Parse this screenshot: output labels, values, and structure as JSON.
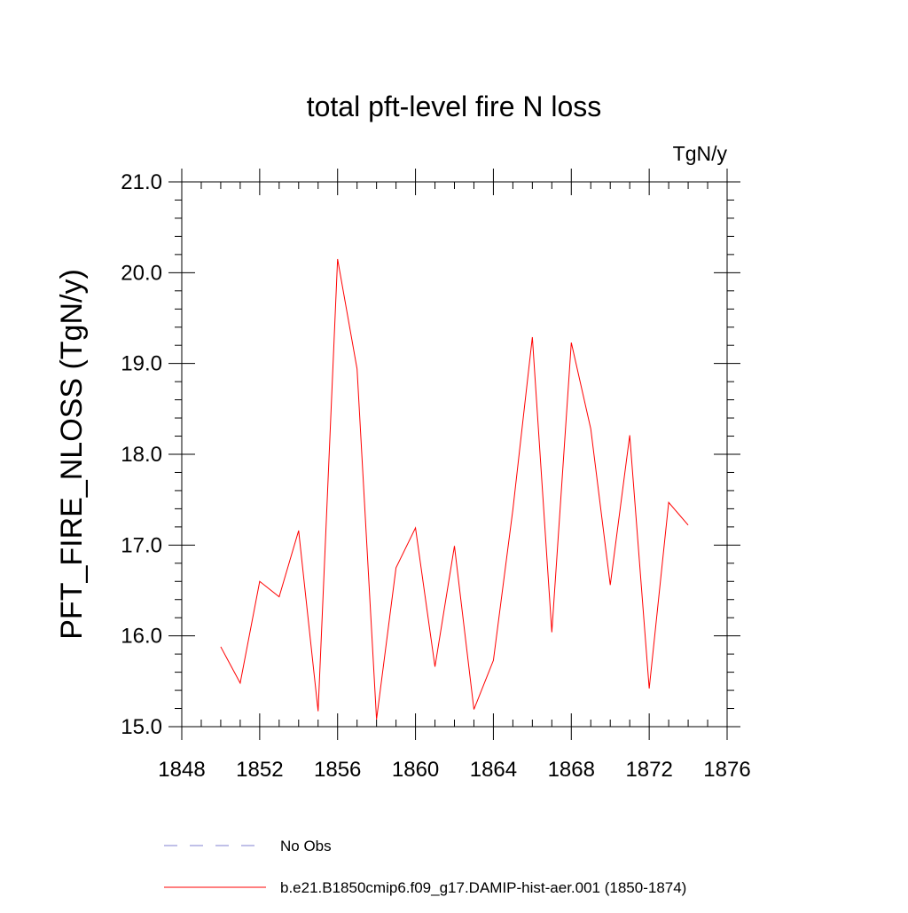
{
  "chart_data": {
    "type": "line",
    "title": "total pft-level fire N loss",
    "units": "TgN/y",
    "xlabel": "",
    "ylabel": "PFT_FIRE_NLOSS  (TgN/y)",
    "xlim": [
      1848,
      1876
    ],
    "ylim": [
      15.0,
      21.0
    ],
    "x_ticks": [
      1848,
      1852,
      1856,
      1860,
      1864,
      1868,
      1872,
      1876
    ],
    "x_tick_labels": [
      "1848",
      "1852",
      "1856",
      "1860",
      "1864",
      "1868",
      "1872",
      "1876"
    ],
    "y_ticks": [
      15.0,
      16.0,
      17.0,
      18.0,
      19.0,
      20.0,
      21.0
    ],
    "y_tick_labels": [
      "15.0",
      "16.0",
      "17.0",
      "18.0",
      "19.0",
      "20.0",
      "21.0"
    ],
    "grid": false,
    "legend_position": "bottom",
    "series": [
      {
        "name": "b.e21.B1850cmip6.f09_g17.DAMIP-hist-aer.001 (1850-1874)",
        "color": "#ff0000",
        "style": "solid",
        "x": [
          1850,
          1851,
          1852,
          1853,
          1854,
          1855,
          1856,
          1857,
          1858,
          1859,
          1860,
          1861,
          1862,
          1863,
          1864,
          1865,
          1866,
          1867,
          1868,
          1869,
          1870,
          1871,
          1872,
          1873,
          1874
        ],
        "y": [
          15.88,
          15.48,
          16.6,
          16.43,
          17.16,
          15.17,
          20.15,
          18.94,
          15.08,
          16.75,
          17.19,
          15.66,
          16.99,
          15.19,
          15.73,
          17.39,
          19.29,
          16.04,
          19.23,
          18.28,
          16.56,
          18.21,
          15.42,
          17.47,
          17.22
        ]
      }
    ],
    "legend_entries": [
      {
        "label": "No Obs",
        "color": "#8080d0",
        "style": "dashed"
      },
      {
        "label": "b.e21.B1850cmip6.f09_g17.DAMIP-hist-aer.001 (1850-1874)",
        "color": "#ff0000",
        "style": "solid"
      }
    ]
  }
}
